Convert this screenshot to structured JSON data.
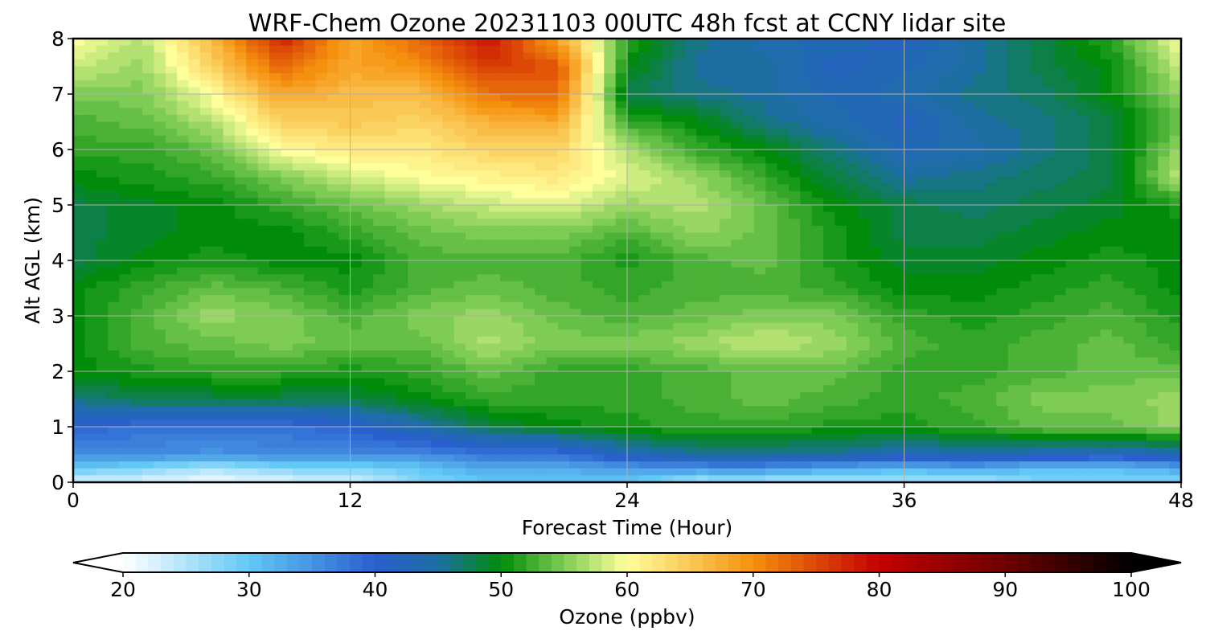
{
  "chart_data": {
    "type": "heatmap",
    "title": "WRF-Chem Ozone  20231103 00UTC 48h fcst at CCNY lidar site",
    "xlabel": "Forecast Time (Hour)",
    "ylabel": "Alt AGL (km)",
    "xlim": [
      0,
      48
    ],
    "ylim": [
      0,
      8
    ],
    "x_ticks": [
      0,
      12,
      24,
      36,
      48
    ],
    "y_ticks": [
      0,
      1,
      2,
      3,
      4,
      5,
      6,
      7,
      8
    ],
    "grid": true,
    "x": [
      0,
      3,
      6,
      9,
      12,
      15,
      18,
      21,
      24,
      27,
      30,
      33,
      36,
      39,
      42,
      45,
      48
    ],
    "y": [
      0,
      0.25,
      0.5,
      1,
      1.5,
      2,
      2.5,
      3,
      3.5,
      4,
      4.5,
      5,
      5.5,
      6,
      6.5,
      7,
      7.5,
      8
    ],
    "z": [
      [
        22,
        22,
        21,
        22,
        22,
        28,
        30,
        30,
        30,
        25,
        25,
        25,
        25,
        25,
        28,
        28,
        28
      ],
      [
        30,
        28,
        25,
        28,
        28,
        30,
        33,
        33,
        34,
        35,
        35,
        33,
        32,
        33,
        31,
        31,
        33
      ],
      [
        36,
        36,
        35,
        36,
        36,
        36,
        38,
        38,
        43,
        45,
        45,
        45,
        43,
        44,
        43,
        42,
        44
      ],
      [
        40,
        38,
        38,
        38,
        40,
        44,
        48,
        50,
        51,
        52,
        52,
        51,
        51,
        52,
        54,
        54,
        56
      ],
      [
        46,
        48,
        48,
        48,
        48,
        50,
        52,
        52,
        52,
        53,
        54,
        53,
        52,
        53,
        55,
        55,
        56
      ],
      [
        50,
        51,
        52,
        52,
        51,
        52,
        54,
        52,
        52,
        53,
        54,
        54,
        52,
        52,
        53,
        54,
        54
      ],
      [
        50,
        53,
        54,
        55,
        54,
        54,
        57,
        55,
        55,
        56,
        58,
        56,
        53,
        52,
        53,
        54,
        52
      ],
      [
        50,
        53,
        56,
        55,
        53,
        55,
        56,
        54,
        53,
        54,
        55,
        55,
        52,
        51,
        52,
        53,
        51
      ],
      [
        50,
        52,
        54,
        53,
        51,
        53,
        54,
        53,
        52,
        53,
        53,
        52,
        50,
        50,
        51,
        52,
        50
      ],
      [
        48,
        50,
        51,
        50,
        50,
        53,
        53,
        53,
        51,
        53,
        54,
        51,
        49,
        49,
        50,
        51,
        50
      ],
      [
        48,
        49,
        50,
        50,
        52,
        54,
        55,
        55,
        53,
        56,
        54,
        51,
        48,
        48,
        49,
        50,
        50
      ],
      [
        48,
        49,
        50,
        52,
        54,
        56,
        58,
        59,
        56,
        57,
        54,
        50,
        48,
        47,
        48,
        49,
        51
      ],
      [
        50,
        51,
        52,
        55,
        58,
        60,
        61,
        62,
        59,
        56,
        52,
        48,
        45,
        46,
        47,
        48,
        58
      ],
      [
        52,
        52,
        54,
        60,
        62,
        62,
        64,
        64,
        57,
        52,
        50,
        46,
        43,
        44,
        46,
        48,
        56
      ],
      [
        53,
        54,
        57,
        64,
        65,
        64,
        67,
        68,
        52,
        50,
        46,
        44,
        42,
        45,
        46,
        48,
        54
      ],
      [
        55,
        55,
        60,
        68,
        66,
        66,
        72,
        73,
        48,
        46,
        45,
        43,
        44,
        46,
        47,
        50,
        56
      ],
      [
        58,
        56,
        64,
        73,
        68,
        70,
        76,
        74,
        50,
        45,
        45,
        42,
        43,
        45,
        48,
        50,
        58
      ],
      [
        60,
        57,
        66,
        78,
        68,
        73,
        79,
        68,
        52,
        46,
        44,
        43,
        42,
        45,
        48,
        52,
        60
      ]
    ],
    "colorbar": {
      "label": "Ozone  (ppbv)",
      "range": [
        20,
        100
      ],
      "ticks": [
        20,
        30,
        40,
        50,
        60,
        70,
        80,
        90,
        100
      ],
      "extend": "both",
      "colormap": [
        [
          20,
          "#ffffff"
        ],
        [
          30,
          "#62c8f5"
        ],
        [
          40,
          "#2a5fcf"
        ],
        [
          45,
          "#1d6fa3"
        ],
        [
          50,
          "#008c0a"
        ],
        [
          55,
          "#7fcc55"
        ],
        [
          60,
          "#ffff9c"
        ],
        [
          70,
          "#f5900e"
        ],
        [
          80,
          "#c50000"
        ],
        [
          90,
          "#6e0000"
        ],
        [
          100,
          "#000000"
        ]
      ]
    }
  }
}
